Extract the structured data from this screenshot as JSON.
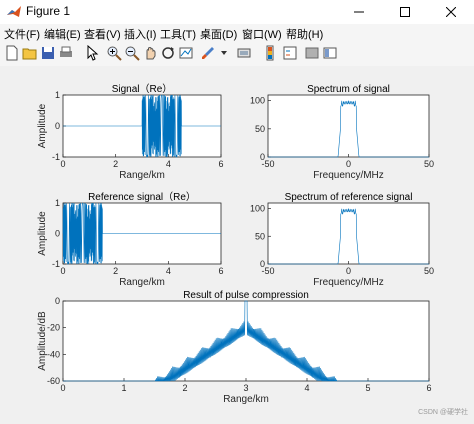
{
  "window": {
    "title": "Figure 1"
  },
  "menu": [
    "文件(F)",
    "编辑(E)",
    "查看(V)",
    "插入(I)",
    "工具(T)",
    "桌面(D)",
    "窗口(W)",
    "帮助(H)"
  ],
  "toolbar_icons": [
    "new-figure-icon",
    "open-icon",
    "save-icon",
    "print-icon",
    "pointer-icon",
    "zoom-in-icon",
    "zoom-out-icon",
    "pan-icon",
    "rotate-icon",
    "data-cursor-icon",
    "brush-icon",
    "link-icon",
    "colorbar-icon",
    "legend-icon",
    "hide-plot-tools-icon",
    "show-plot-tools-icon"
  ],
  "colors": {
    "line": "#0072bd",
    "axes_bg": "#ffffff",
    "figure_bg": "#f0f0f0"
  },
  "watermark": "CSDN @硬学社",
  "chart_data": [
    {
      "type": "line",
      "title": "Signal（Re）",
      "xlabel": "Range/km",
      "ylabel": "Amplitude",
      "xlim": [
        0,
        6
      ],
      "ylim": [
        -1,
        1
      ],
      "xticks": [
        "0",
        "2",
        "4",
        "6"
      ],
      "yticks": [
        "1",
        "0",
        "-1"
      ],
      "series": [
        {
          "description": "real part of LFM chirp, nonzero between 3.0 and 4.5 km, zero elsewhere",
          "x_start": 3.0,
          "x_end": 4.5,
          "amplitude": 1
        }
      ]
    },
    {
      "type": "line",
      "title": "Spectrum of signal",
      "xlabel": "Frequency/MHz",
      "ylabel": "",
      "xlim": [
        -50,
        50
      ],
      "ylim": [
        0,
        110
      ],
      "xticks": [
        "-50",
        "0",
        "50"
      ],
      "yticks": [
        "100",
        "50",
        "0"
      ],
      "series": [
        {
          "description": "rectangular chirp spectrum, about 100 between -5 and 5 MHz with ripple, ~0 elsewhere",
          "f_start": -5,
          "f_end": 5,
          "level": 100
        }
      ]
    },
    {
      "type": "line",
      "title": "Reference signal（Re）",
      "xlabel": "Range/km",
      "ylabel": "Amplitude",
      "xlim": [
        0,
        6
      ],
      "ylim": [
        -1,
        1
      ],
      "xticks": [
        "0",
        "2",
        "4",
        "6"
      ],
      "yticks": [
        "1",
        "0",
        "-1"
      ],
      "series": [
        {
          "description": "real part of reference chirp, nonzero between 0 and 1.5 km",
          "x_start": 0,
          "x_end": 1.5,
          "amplitude": 1
        }
      ]
    },
    {
      "type": "line",
      "title": "Spectrum of reference signal",
      "xlabel": "Frequency/MHz",
      "ylabel": "",
      "xlim": [
        -50,
        50
      ],
      "ylim": [
        0,
        110
      ],
      "xticks": [
        "-50",
        "0",
        "50"
      ],
      "yticks": [
        "100",
        "50",
        "0"
      ],
      "series": [
        {
          "description": "rectangular chirp spectrum, about 100 between -5 and 5 MHz",
          "f_start": -5,
          "f_end": 5,
          "level": 100
        }
      ]
    },
    {
      "type": "line",
      "title": "Result of pulse compression",
      "xlabel": "Range/km",
      "ylabel": "Amplitude/dB",
      "xlim": [
        0,
        6
      ],
      "ylim": [
        -60,
        0
      ],
      "xticks": [
        "0",
        "1",
        "2",
        "3",
        "4",
        "5",
        "6"
      ],
      "yticks": [
        "0",
        "-20",
        "-40",
        "-60"
      ],
      "series": [
        {
          "description": "compressed pulse, peak 0 dB at 3 km, sidelobes decaying to -60 dB, nonzero between 1.5 and 4.5 km",
          "peak_x": 3,
          "peak_db": 0,
          "x_start": 1.5,
          "x_end": 4.5
        }
      ]
    }
  ]
}
